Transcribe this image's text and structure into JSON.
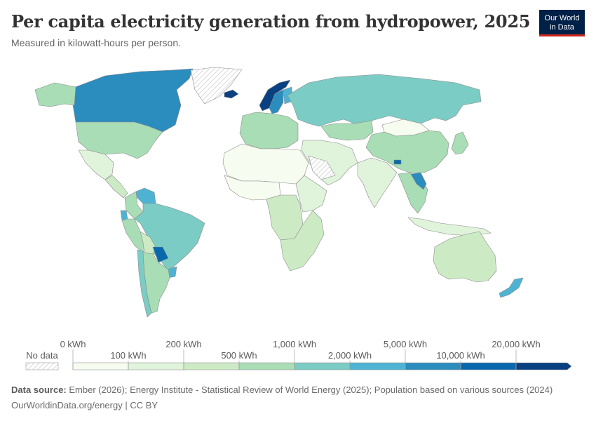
{
  "header": {
    "title": "Per capita electricity generation from hydropower, 2025",
    "subtitle": "Measured in kilowatt-hours per person."
  },
  "logo": {
    "line1": "Our World",
    "line2": "in Data",
    "bg": "#002147",
    "accent": "#ce261e"
  },
  "legend": {
    "no_data_label": "No data",
    "bins": [
      {
        "from_label": "0 kWh",
        "to_label": "100 kWh",
        "color": "#f7fcf0"
      },
      {
        "from_label": "100 kWh",
        "to_label": "200 kWh",
        "color": "#e0f3db"
      },
      {
        "from_label": "200 kWh",
        "to_label": "500 kWh",
        "color": "#ccebc5"
      },
      {
        "from_label": "500 kWh",
        "to_label": "1,000 kWh",
        "color": "#a8ddb5"
      },
      {
        "from_label": "1,000 kWh",
        "to_label": "2,000 kWh",
        "color": "#7bccc4"
      },
      {
        "from_label": "2,000 kWh",
        "to_label": "5,000 kWh",
        "color": "#4eb3d3"
      },
      {
        "from_label": "5,000 kWh",
        "to_label": "10,000 kWh",
        "color": "#2b8cbe"
      },
      {
        "from_label": "10,000 kWh",
        "to_label": "20,000 kWh",
        "color": "#0868ac"
      },
      {
        "from_label": "20,000 kWh",
        "to_label": "",
        "color": "#084081"
      }
    ],
    "tick_labels": [
      "0 kWh",
      "100 kWh",
      "200 kWh",
      "500 kWh",
      "1,000 kWh",
      "2,000 kWh",
      "5,000 kWh",
      "10,000 kWh",
      "20,000 kWh"
    ]
  },
  "footer": {
    "source_label": "Data source:",
    "source_text": " Ember (2026); Energy Institute - Statistical Review of World Energy (2025); Population based on various sources (2024)",
    "url_text": "OurWorldinData.org/energy | CC BY"
  },
  "map": {
    "regions": [
      {
        "name": "canada",
        "color": "#2b8cbe"
      },
      {
        "name": "alaska",
        "color": "#a8ddb5"
      },
      {
        "name": "greenland",
        "color": "no-data"
      },
      {
        "name": "united-states",
        "color": "#a8ddb5"
      },
      {
        "name": "mexico",
        "color": "#e0f3db"
      },
      {
        "name": "central-america",
        "color": "#ccebc5"
      },
      {
        "name": "venezuela",
        "color": "#4eb3d3"
      },
      {
        "name": "colombia",
        "color": "#a8ddb5"
      },
      {
        "name": "ecuador",
        "color": "#4eb3d3"
      },
      {
        "name": "peru",
        "color": "#a8ddb5"
      },
      {
        "name": "brazil",
        "color": "#7bccc4"
      },
      {
        "name": "bolivia",
        "color": "#ccebc5"
      },
      {
        "name": "paraguay",
        "color": "#0868ac"
      },
      {
        "name": "uruguay",
        "color": "#4eb3d3"
      },
      {
        "name": "chile",
        "color": "#7bccc4"
      },
      {
        "name": "argentina",
        "color": "#a8ddb5"
      },
      {
        "name": "iceland",
        "color": "#084081"
      },
      {
        "name": "norway",
        "color": "#084081"
      },
      {
        "name": "sweden",
        "color": "#2b8cbe"
      },
      {
        "name": "finland",
        "color": "#4eb3d3"
      },
      {
        "name": "western-europe",
        "color": "#a8ddb5"
      },
      {
        "name": "russia",
        "color": "#7bccc4"
      },
      {
        "name": "kazakhstan",
        "color": "#a8ddb5"
      },
      {
        "name": "mongolia",
        "color": "#f7fcf0"
      },
      {
        "name": "china",
        "color": "#a8ddb5"
      },
      {
        "name": "india",
        "color": "#e0f3db"
      },
      {
        "name": "middle-east",
        "color": "#e0f3db"
      },
      {
        "name": "north-africa",
        "color": "#f7fcf0"
      },
      {
        "name": "sahara-no-data",
        "color": "no-data"
      },
      {
        "name": "west-africa",
        "color": "#f7fcf0"
      },
      {
        "name": "central-africa",
        "color": "#ccebc5"
      },
      {
        "name": "east-africa",
        "color": "#e0f3db"
      },
      {
        "name": "southern-africa",
        "color": "#ccebc5"
      },
      {
        "name": "southeast-asia",
        "color": "#a8ddb5"
      },
      {
        "name": "laos",
        "color": "#2b8cbe"
      },
      {
        "name": "japan",
        "color": "#a8ddb5"
      },
      {
        "name": "indonesia",
        "color": "#e0f3db"
      },
      {
        "name": "australia",
        "color": "#ccebc5"
      },
      {
        "name": "new-zealand",
        "color": "#4eb3d3"
      },
      {
        "name": "nepal-bhutan",
        "color": "#0868ac"
      }
    ]
  }
}
